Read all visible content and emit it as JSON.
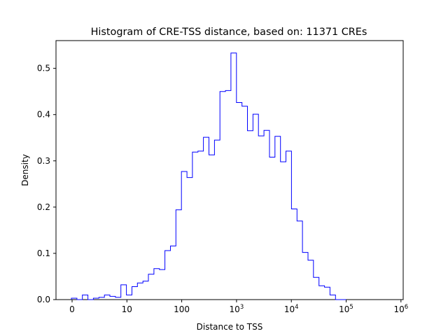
{
  "chart_data": {
    "type": "histogram",
    "title": "Histogram of CRE-TSS distance, based on: 11371 CREs",
    "xlabel": "Distance to TSS",
    "ylabel": "Density",
    "x_scale": "symlog",
    "x_tick_labels": [
      "0",
      "10",
      "100",
      "10^3",
      "10^4",
      "10^5",
      "10^6"
    ],
    "y_ticks": [
      0.0,
      0.1,
      0.2,
      0.3,
      0.4,
      0.5
    ],
    "y_tick_labels": [
      "0.0",
      "0.1",
      "0.2",
      "0.3",
      "0.4",
      "0.5"
    ],
    "ylim": [
      0,
      0.56
    ],
    "grid": false,
    "line_color": "#0000ff",
    "bin_heights": [
      0.003,
      0.0,
      0.01,
      0.0,
      0.003,
      0.005,
      0.01,
      0.007,
      0.005,
      0.032,
      0.01,
      0.028,
      0.036,
      0.04,
      0.055,
      0.067,
      0.065,
      0.106,
      0.116,
      0.194,
      0.277,
      0.264,
      0.319,
      0.321,
      0.351,
      0.313,
      0.345,
      0.45,
      0.452,
      0.533,
      0.426,
      0.418,
      0.365,
      0.401,
      0.354,
      0.366,
      0.308,
      0.353,
      0.298,
      0.321,
      0.196,
      0.17,
      0.102,
      0.085,
      0.048,
      0.03,
      0.027,
      0.01,
      0.0,
      0.0
    ]
  }
}
